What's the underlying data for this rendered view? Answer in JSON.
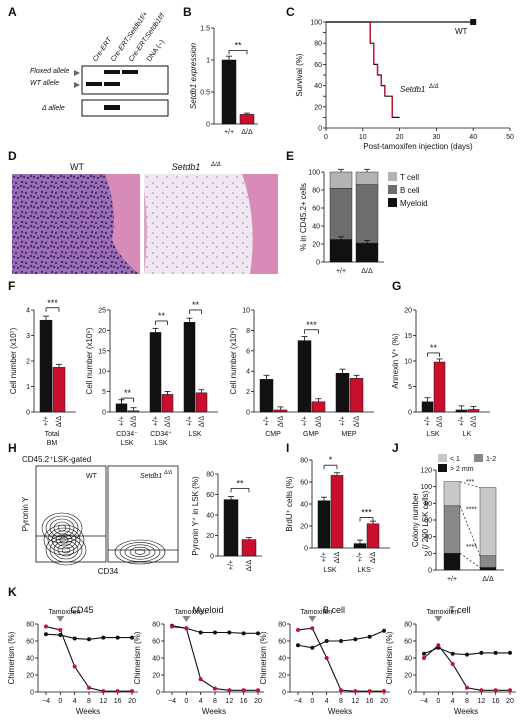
{
  "colors": {
    "wt": "#111111",
    "ko": "#c8102e",
    "tcell": "#b3b3b3",
    "bcell": "#6e6e6e",
    "myeloid": "#111111",
    "mid": "#888888",
    "light": "#c8c8c8"
  },
  "panel_letters": [
    "A",
    "B",
    "C",
    "D",
    "E",
    "F",
    "G",
    "H",
    "I",
    "J",
    "K"
  ],
  "panelA": {
    "lanes": [
      "Cre-ERT",
      "Cre-ERT;Setdb1f/+",
      "Cre-ERT;Setdb1f/f",
      "DNA (–)"
    ],
    "bands": [
      "Floxed allele",
      "WT allele",
      "Δ allele"
    ]
  },
  "chart_data": [
    {
      "id": "B",
      "type": "bar",
      "categories": [
        "+/+",
        "Δ/Δ"
      ],
      "values": [
        1.0,
        0.15
      ],
      "errors": [
        0.06,
        0.02
      ],
      "ylabel": "Setdb1 expression",
      "ylim": [
        0,
        1.5
      ],
      "yticks": [
        0,
        0.5,
        1.0,
        1.5
      ],
      "sig": "**"
    },
    {
      "id": "C",
      "type": "line",
      "xlabel": "Post-tamoxifen injection (days)",
      "ylabel": "Survival (%)",
      "xlim": [
        0,
        50
      ],
      "ylim": [
        0,
        100
      ],
      "xticks": [
        0,
        10,
        20,
        30,
        40,
        50
      ],
      "yticks": [
        0,
        10,
        20,
        30,
        40,
        50,
        60,
        70,
        80,
        90,
        100
      ],
      "series": [
        {
          "name": "WT",
          "x": [
            0,
            40
          ],
          "y": [
            100,
            100
          ]
        },
        {
          "name": "Setdb1Δ/Δ",
          "x": [
            0,
            12,
            12,
            13,
            13,
            14,
            14,
            15,
            15,
            16,
            16,
            18,
            18,
            20
          ],
          "y": [
            100,
            100,
            80,
            80,
            60,
            60,
            50,
            50,
            40,
            40,
            30,
            30,
            10,
            10
          ]
        }
      ]
    },
    {
      "id": "E",
      "type": "bar",
      "stacked": true,
      "categories": [
        "+/+",
        "Δ/Δ"
      ],
      "ylabel": "% in CD45.2+ cells",
      "ylim": [
        0,
        100
      ],
      "yticks": [
        0,
        20,
        40,
        60,
        80,
        100
      ],
      "series": [
        {
          "name": "Myeloid",
          "values": [
            25,
            21
          ]
        },
        {
          "name": "B cell",
          "values": [
            57,
            65
          ]
        },
        {
          "name": "T cell",
          "values": [
            18,
            14
          ]
        }
      ]
    },
    {
      "id": "F1",
      "type": "bar",
      "categories": [
        "Total BM"
      ],
      "groups": [
        "+/+",
        "Δ/Δ"
      ],
      "values": [
        [
          3.6,
          1.75
        ]
      ],
      "ylabel": "Cell number (x10⁷)",
      "ylim": [
        0,
        4
      ],
      "yticks": [
        0,
        1,
        2,
        3,
        4
      ],
      "sig": [
        "***"
      ]
    },
    {
      "id": "F2",
      "type": "bar",
      "categories": [
        "CD34⁻ LSK",
        "CD34⁺ LSK",
        "LSK"
      ],
      "groups": [
        "+/+",
        "Δ/Δ"
      ],
      "values": [
        [
          2,
          0.3
        ],
        [
          19.5,
          4.3
        ],
        [
          22,
          4.7
        ]
      ],
      "ylabel": "Cell number (x10⁵)",
      "ylim": [
        0,
        25
      ],
      "yticks": [
        0,
        5,
        10,
        15,
        20,
        25
      ],
      "sig": [
        "**",
        "**",
        "**"
      ]
    },
    {
      "id": "F3",
      "type": "bar",
      "categories": [
        "CMP",
        "GMP",
        "MEP"
      ],
      "groups": [
        "+/+",
        "Δ/Δ"
      ],
      "values": [
        [
          3.2,
          0.2
        ],
        [
          7,
          1
        ],
        [
          3.8,
          3.3
        ]
      ],
      "ylabel": "Cell number (x10⁶)",
      "ylim": [
        0,
        10
      ],
      "yticks": [
        0,
        2,
        4,
        6,
        8,
        10
      ],
      "sig": [
        "",
        "***",
        ""
      ]
    },
    {
      "id": "G",
      "type": "bar",
      "categories": [
        "LSK",
        "LK"
      ],
      "groups": [
        "+/+",
        "Δ/Δ"
      ],
      "values": [
        [
          2,
          9.8
        ],
        [
          0.4,
          0.5
        ]
      ],
      "ylabel": "Annexin V⁺ (%)",
      "ylim": [
        0,
        20
      ],
      "yticks": [
        0,
        5,
        10,
        15,
        20
      ],
      "sig": [
        "**",
        ""
      ]
    },
    {
      "id": "H",
      "type": "bar",
      "categories": [
        "+/+",
        "Δ/Δ"
      ],
      "values": [
        55,
        16
      ],
      "ylabel": "Pyronin Y⁺ in LSK (%)",
      "ylim": [
        0,
        80
      ],
      "yticks": [
        0,
        20,
        40,
        60,
        80
      ],
      "sig": "**"
    },
    {
      "id": "I",
      "type": "bar",
      "categories": [
        "LSK",
        "LKS⁻"
      ],
      "groups": [
        "+/+",
        "Δ/Δ"
      ],
      "values": [
        [
          43,
          66
        ],
        [
          4,
          22
        ]
      ],
      "ylabel": "BrdU⁺ cells (%)",
      "ylim": [
        0,
        80
      ],
      "yticks": [
        0,
        20,
        40,
        60,
        80
      ],
      "sig": [
        "*",
        "***"
      ]
    },
    {
      "id": "J",
      "type": "bar",
      "stacked": true,
      "categories": [
        "+/+",
        "Δ/Δ"
      ],
      "ylabel": "Colony number (/ 200 LSK cells)",
      "ylim": [
        0,
        120
      ],
      "yticks": [
        0,
        20,
        40,
        60,
        80,
        100,
        120
      ],
      "series": [
        {
          "name": "> 2 mm",
          "values": [
            20,
            3
          ]
        },
        {
          "name": "1-2",
          "values": [
            57,
            14
          ]
        },
        {
          "name": "< 1",
          "values": [
            29,
            82
          ]
        }
      ],
      "sig": [
        "***",
        "****",
        "****"
      ]
    },
    {
      "id": "K",
      "type": "line",
      "xlabel": "Weeks",
      "ylabel": "Chimerism (%)",
      "xcategories": [
        "−4",
        "0",
        "4",
        "8",
        "12",
        "16",
        "20"
      ],
      "ylim": [
        0,
        80
      ],
      "yticks": [
        0,
        20,
        40,
        60,
        80
      ],
      "annotation": "Tamoxifen",
      "panels": [
        {
          "title": "CD45",
          "series": [
            {
              "name": "+/+",
              "y": [
                68,
                67,
                63,
                62,
                64,
                64,
                64
              ]
            },
            {
              "name": "Δ/Δ",
              "y": [
                77,
                73,
                30,
                5,
                1,
                1,
                1
              ]
            }
          ]
        },
        {
          "title": "Myeloid",
          "series": [
            {
              "name": "+/+",
              "y": [
                78,
                75,
                70,
                70,
                70,
                69,
                69
              ]
            },
            {
              "name": "Δ/Δ",
              "y": [
                77,
                75,
                15,
                4,
                2,
                2,
                2
              ]
            }
          ]
        },
        {
          "title": "B cell",
          "series": [
            {
              "name": "+/+",
              "y": [
                55,
                52,
                60,
                60,
                62,
                65,
                72
              ]
            },
            {
              "name": "Δ/Δ",
              "y": [
                73,
                75,
                40,
                2,
                1,
                1,
                1
              ]
            }
          ]
        },
        {
          "title": "T cell",
          "series": [
            {
              "name": "+/+",
              "y": [
                45,
                52,
                45,
                44,
                46,
                46,
                46
              ]
            },
            {
              "name": "Δ/Δ",
              "y": [
                40,
                55,
                33,
                5,
                2,
                2,
                2
              ]
            }
          ]
        }
      ]
    }
  ],
  "labels": {
    "C_wt": "WT",
    "C_ko": "Setdb1",
    "D_wt": "WT",
    "D_ko": "Setdb1",
    "H_gate": "CD45.2⁺LSK-gated",
    "H_y": "Pyronin Y",
    "H_x": "CD34",
    "H_wt": "WT",
    "H_ko": "Setdb1",
    "dd": "Δ/Δ"
  }
}
